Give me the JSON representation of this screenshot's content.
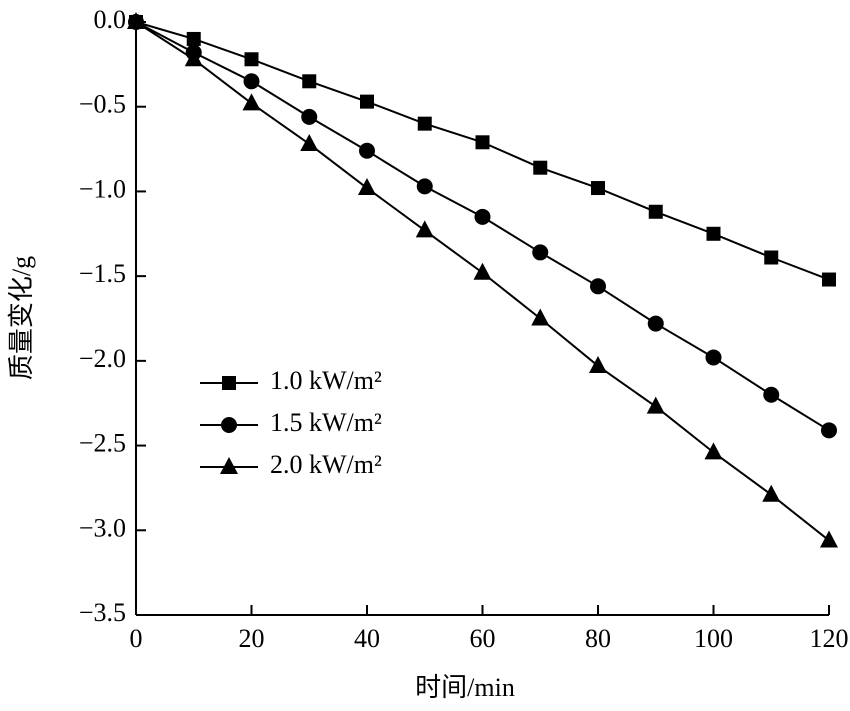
{
  "chart_data": {
    "type": "line",
    "x_label": "时间/min",
    "y_label": "质量变化/g",
    "x": [
      0,
      10,
      20,
      30,
      40,
      50,
      60,
      70,
      80,
      90,
      100,
      110,
      120
    ],
    "series": [
      {
        "name": "1.0 kW/m²",
        "color": "#000000",
        "marker": "square",
        "values": [
          0,
          -0.1,
          -0.22,
          -0.35,
          -0.47,
          -0.6,
          -0.71,
          -0.86,
          -0.98,
          -1.12,
          -1.25,
          -1.39,
          -1.52
        ]
      },
      {
        "name": "1.5 kW/m²",
        "color": "#000000",
        "marker": "circle",
        "values": [
          0,
          -0.18,
          -0.35,
          -0.56,
          -0.76,
          -0.97,
          -1.15,
          -1.36,
          -1.56,
          -1.78,
          -1.98,
          -2.2,
          -2.41
        ]
      },
      {
        "name": "2.0 kW/m²",
        "color": "#000000",
        "marker": "triangle",
        "values": [
          0,
          -0.22,
          -0.48,
          -0.72,
          -0.98,
          -1.23,
          -1.48,
          -1.75,
          -2.03,
          -2.27,
          -2.54,
          -2.79,
          -3.06
        ]
      }
    ],
    "xlim": [
      0,
      120
    ],
    "xticks": [
      0,
      20,
      40,
      60,
      80,
      100,
      120
    ],
    "ylim": [
      -3.5,
      0
    ],
    "yticks": [
      {
        "value": 0,
        "label": "0.0"
      },
      {
        "value": -0.5,
        "label": "−0.5"
      },
      {
        "value": -1,
        "label": "−1.0"
      },
      {
        "value": -1.5,
        "label": "−1.5"
      },
      {
        "value": -2,
        "label": "−2.0"
      },
      {
        "value": -2.5,
        "label": "−2.5"
      },
      {
        "value": -3,
        "label": "−3.0"
      },
      {
        "value": -3.5,
        "label": "−3.5"
      }
    ],
    "legend": "lower left"
  }
}
